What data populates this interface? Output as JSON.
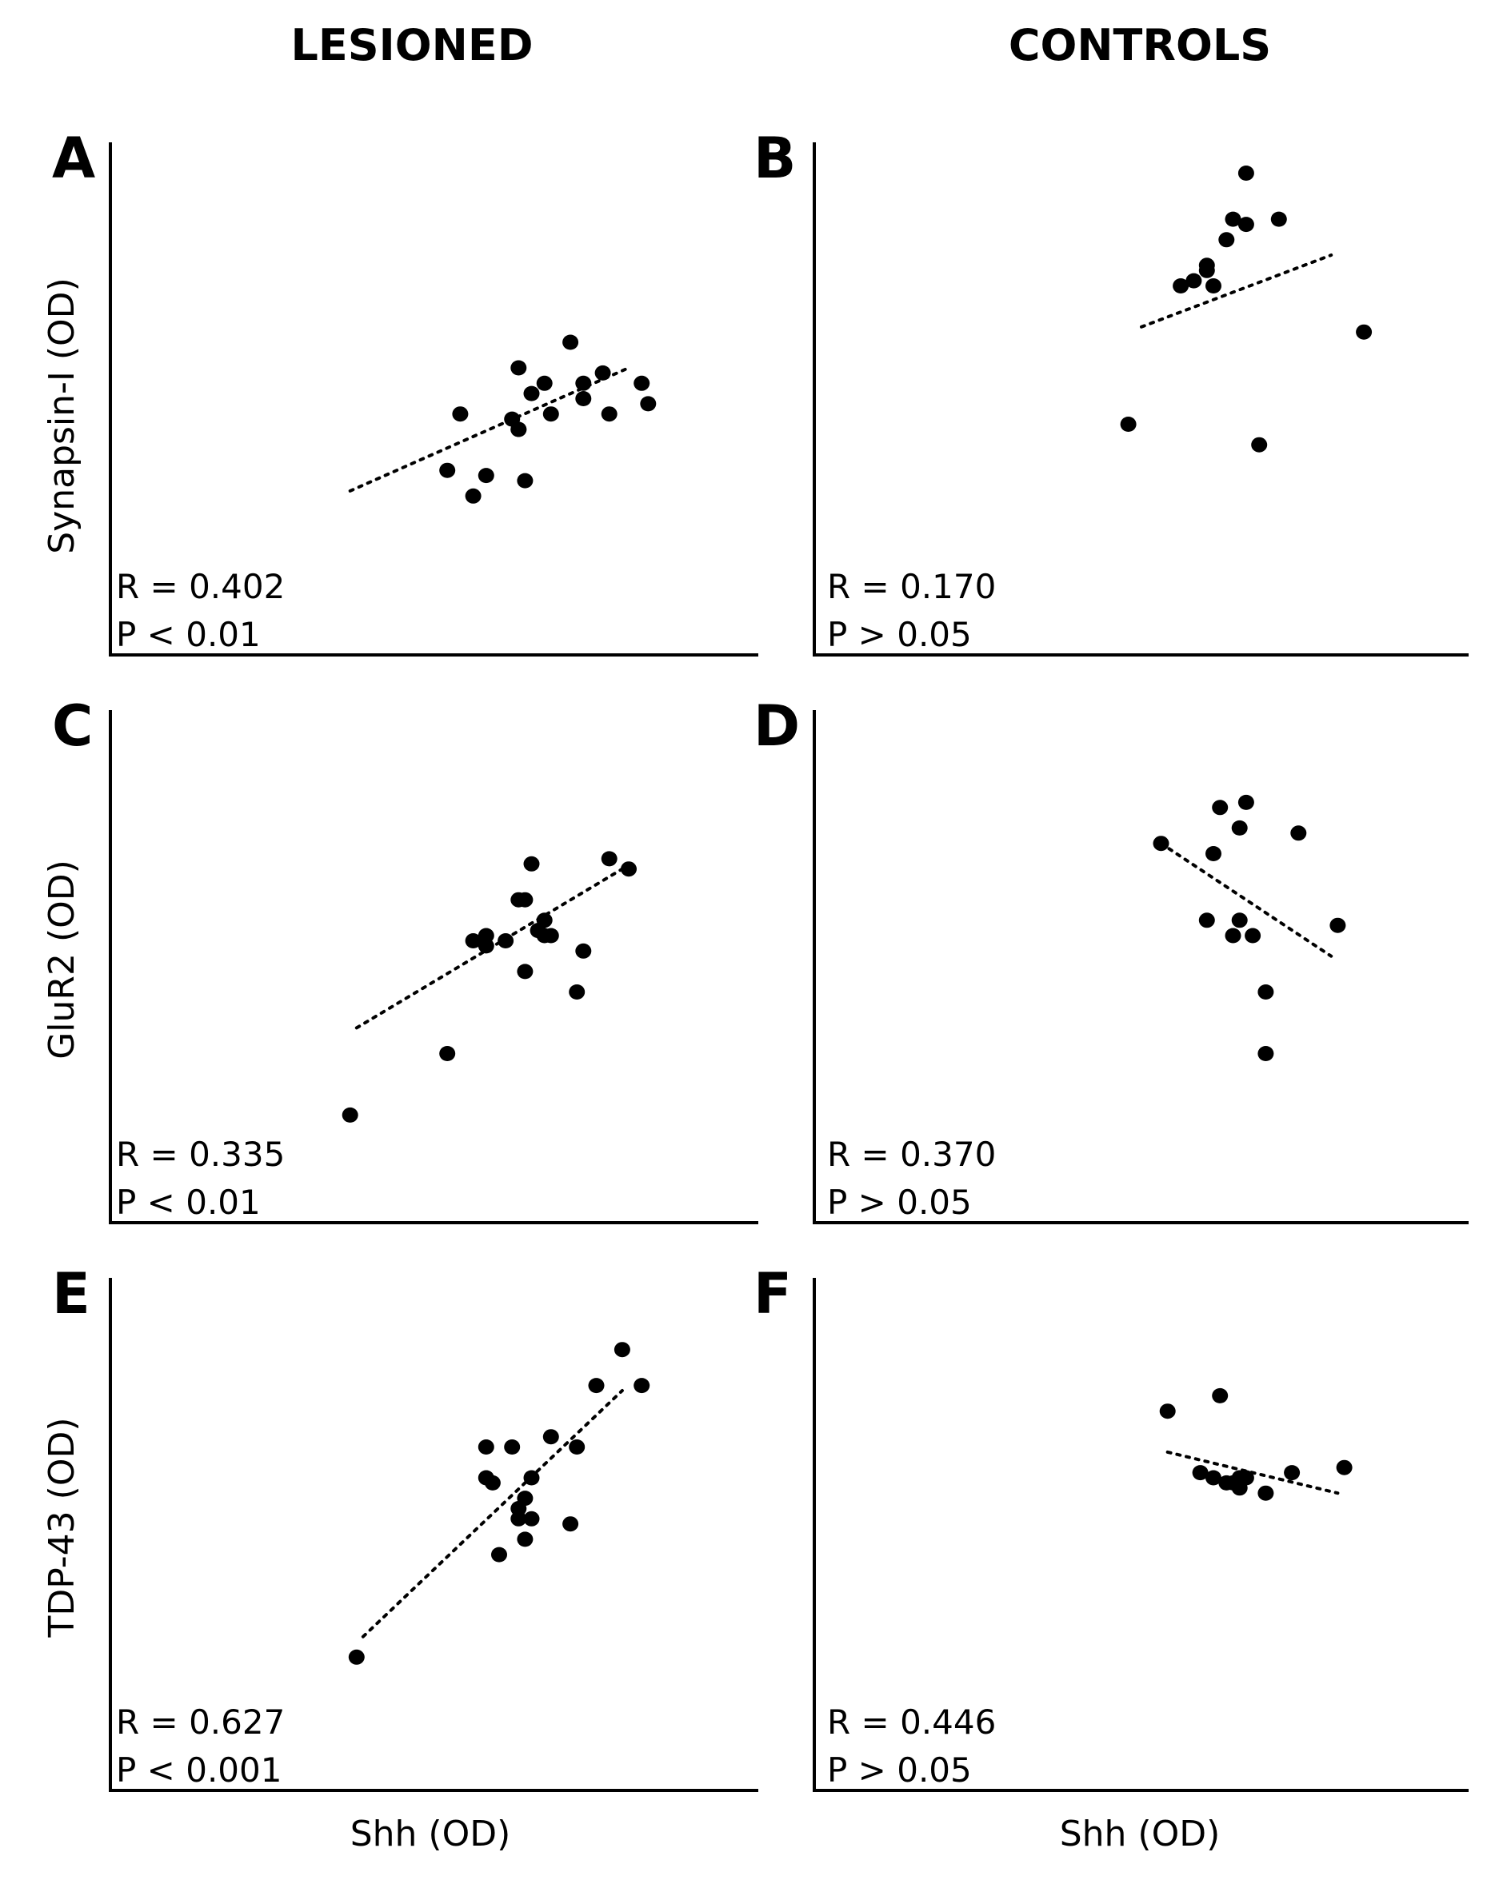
{
  "column_titles": {
    "left": "LESIONED",
    "right": "CONTROLS"
  },
  "x_axis_label": "Shh (OD)",
  "row_ylabels": [
    "Synapsin-I (OD)",
    "GluR2 (OD)",
    "TDP-43 (OD)"
  ],
  "chart_data": [
    {
      "type": "scatter",
      "panel": "A",
      "group": "LESIONED",
      "xlabel": "",
      "ylabel": "Synapsin-I (OD)",
      "stats": {
        "r": "R = 0.402",
        "p": "P < 0.01"
      },
      "xlim": [
        0,
        10
      ],
      "ylim": [
        0,
        10
      ],
      "x": [
        5.8,
        8.2,
        7.6,
        6.3,
        7.3,
        6.5,
        7.7,
        6.3,
        6.2,
        5.4,
        6.3,
        6.4,
        6.7,
        6.8,
        5.2,
        5.6,
        7.3,
        8.3,
        7.1
      ],
      "y": [
        3.5,
        5.3,
        5.5,
        5.6,
        5.3,
        5.1,
        4.7,
        4.4,
        4.6,
        4.7,
        4.4,
        3.4,
        5.3,
        4.7,
        3.6,
        3.1,
        5.0,
        4.9,
        6.1
      ],
      "trend": {
        "x": [
          3.7,
          8.0
        ],
        "y": [
          3.2,
          5.6
        ]
      }
    },
    {
      "type": "scatter",
      "panel": "B",
      "group": "CONTROLS",
      "xlabel": "",
      "ylabel": "",
      "stats": {
        "r": "R = 0.170",
        "p": "P > 0.05"
      },
      "xlim": [
        0,
        10
      ],
      "ylim": [
        0,
        10
      ],
      "x": [
        6.6,
        6.3,
        6.4,
        6.6,
        6.0,
        5.8,
        6.1,
        5.6,
        6.0,
        7.1,
        8.4,
        6.8,
        4.8
      ],
      "y": [
        9.4,
        8.1,
        8.5,
        8.4,
        7.5,
        7.3,
        7.2,
        7.2,
        7.6,
        8.5,
        6.3,
        4.1,
        4.5
      ],
      "trend": {
        "x": [
          5.0,
          7.9
        ],
        "y": [
          6.4,
          7.8
        ]
      }
    },
    {
      "type": "scatter",
      "panel": "C",
      "group": "LESIONED",
      "xlabel": "",
      "ylabel": "GluR2 (OD)",
      "stats": {
        "r": "R = 0.335",
        "p": "P < 0.01"
      },
      "xlim": [
        0,
        10
      ],
      "ylim": [
        0,
        10
      ],
      "x": [
        6.5,
        6.3,
        7.7,
        8.0,
        6.4,
        6.7,
        6.6,
        5.8,
        6.7,
        7.3,
        5.6,
        5.8,
        6.4,
        6.8,
        7.2,
        5.2,
        6.1,
        3.7
      ],
      "y": [
        7.0,
        6.3,
        7.1,
        6.9,
        6.3,
        5.9,
        5.7,
        5.6,
        5.6,
        5.3,
        5.5,
        5.4,
        4.9,
        5.6,
        4.5,
        3.3,
        5.5,
        2.1
      ],
      "trend": {
        "x": [
          3.8,
          7.9
        ],
        "y": [
          3.8,
          6.9
        ]
      }
    },
    {
      "type": "scatter",
      "panel": "D",
      "group": "CONTROLS",
      "xlabel": "",
      "ylabel": "",
      "stats": {
        "r": "R = 0.370",
        "p": "P > 0.05"
      },
      "xlim": [
        0,
        10
      ],
      "ylim": [
        0,
        10
      ],
      "x": [
        6.2,
        6.6,
        6.5,
        7.4,
        5.3,
        6.1,
        6.0,
        6.5,
        6.7,
        6.4,
        8.0,
        6.9,
        6.9
      ],
      "y": [
        8.1,
        8.2,
        7.7,
        7.6,
        7.4,
        7.2,
        5.9,
        5.9,
        5.6,
        5.6,
        5.8,
        4.5,
        3.3
      ],
      "trend": {
        "x": [
          5.3,
          7.9
        ],
        "y": [
          7.4,
          5.2
        ]
      }
    },
    {
      "type": "scatter",
      "panel": "E",
      "group": "LESIONED",
      "xlabel": "Shh (OD)",
      "ylabel": "TDP-43 (OD)",
      "stats": {
        "r": "R = 0.627",
        "p": "P < 0.001"
      },
      "xlim": [
        0,
        10
      ],
      "ylim": [
        0,
        10
      ],
      "x": [
        7.9,
        7.5,
        8.2,
        5.8,
        6.2,
        6.8,
        7.2,
        5.8,
        5.9,
        6.5,
        6.4,
        6.3,
        6.5,
        6.3,
        7.1,
        6.4,
        6.0,
        3.8
      ],
      "y": [
        8.6,
        7.9,
        7.9,
        6.7,
        6.7,
        6.9,
        6.7,
        6.1,
        6.0,
        6.1,
        5.7,
        5.5,
        5.3,
        5.3,
        5.2,
        4.9,
        4.6,
        2.6
      ],
      "trend": {
        "x": [
          3.9,
          7.9
        ],
        "y": [
          3.0,
          7.8
        ]
      }
    },
    {
      "type": "scatter",
      "panel": "F",
      "group": "CONTROLS",
      "xlabel": "Shh (OD)",
      "ylabel": "",
      "stats": {
        "r": "R = 0.446",
        "p": "P > 0.05"
      },
      "xlim": [
        0,
        10
      ],
      "ylim": [
        0,
        10
      ],
      "x": [
        6.2,
        5.4,
        5.9,
        6.1,
        6.5,
        6.4,
        6.6,
        6.5,
        7.3,
        8.1,
        6.9,
        6.3
      ],
      "y": [
        7.7,
        7.4,
        6.2,
        6.1,
        6.1,
        6.0,
        6.1,
        5.9,
        6.2,
        6.3,
        5.8,
        6.0
      ],
      "trend": {
        "x": [
          5.4,
          8.0
        ],
        "y": [
          6.6,
          5.8
        ]
      }
    }
  ]
}
